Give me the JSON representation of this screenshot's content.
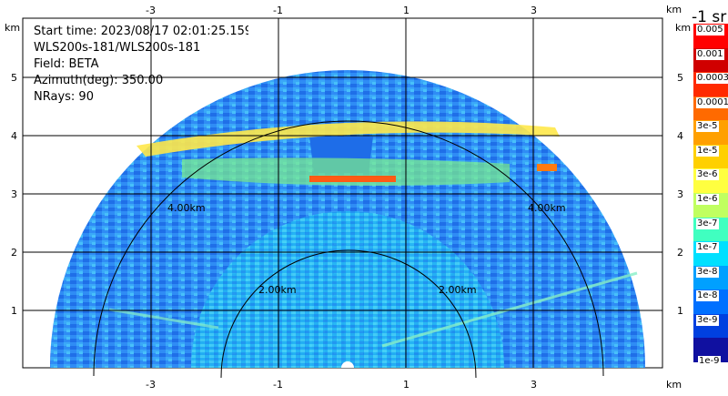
{
  "info": {
    "start_time": "Start time: 2023/08/17 02:01:25.159",
    "instrument": "WLS200s-181/WLS200s-181",
    "field": "Field: BETA",
    "azimuth": "Azimuth(deg): 350.00",
    "nrays": "NRays: 90"
  },
  "axes": {
    "unit": "km",
    "x_ticks": [
      "-3",
      "-1",
      "1",
      "3"
    ],
    "y_ticks": [
      "1",
      "2",
      "3",
      "4",
      "5"
    ],
    "range_rings": [
      "2.00km",
      "4.00km"
    ]
  },
  "colorbar": {
    "title": "-1 sr",
    "labels": [
      "0.005",
      "0.001",
      "0.0003",
      "0.0001",
      "3e-5",
      "1e-5",
      "3e-6",
      "1e-6",
      "3e-7",
      "1e-7",
      "3e-8",
      "1e-8",
      "3e-9",
      "1e-9"
    ],
    "colors": [
      "#ff0000",
      "#d00000",
      "#ff2a00",
      "#ff6a00",
      "#ffa000",
      "#ffd000",
      "#ffff40",
      "#c0ff60",
      "#40ffc0",
      "#00e0ff",
      "#00a0ff",
      "#0070ff",
      "#0040e0",
      "#1010a0"
    ]
  }
}
